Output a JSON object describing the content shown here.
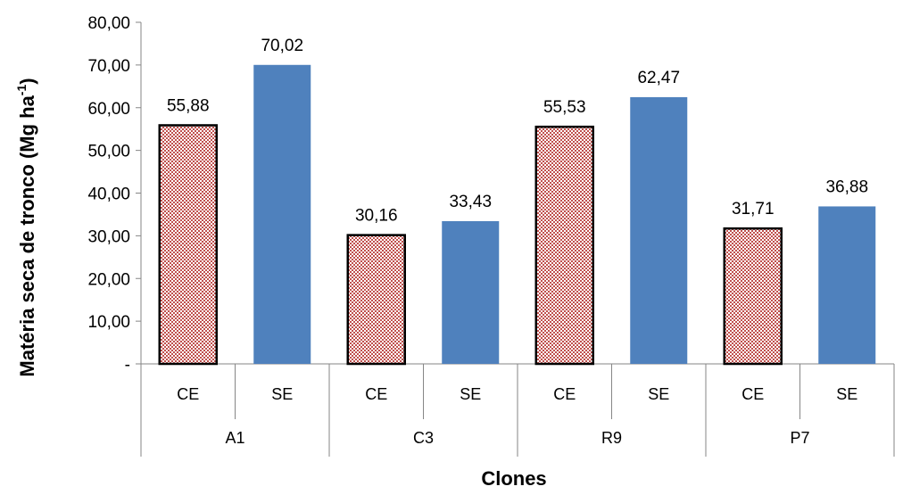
{
  "chart_data": {
    "type": "bar",
    "ylabel": "Matéria seca de tronco (Mg ha",
    "ylabel_superscript": "-1",
    "ylabel_close": ")",
    "xlabel": "Clones",
    "ylim": [
      0,
      80
    ],
    "yticks": [
      "-",
      "10,00",
      "20,00",
      "30,00",
      "40,00",
      "50,00",
      "60,00",
      "70,00",
      "80,00"
    ],
    "grid": false,
    "groups": [
      {
        "label": "A1",
        "bars": [
          {
            "label": "CE",
            "value": 55.88,
            "value_label": "55,88"
          },
          {
            "label": "SE",
            "value": 70.02,
            "value_label": "70,02"
          }
        ]
      },
      {
        "label": "C3",
        "bars": [
          {
            "label": "CE",
            "value": 30.16,
            "value_label": "30,16"
          },
          {
            "label": "SE",
            "value": 33.43,
            "value_label": "33,43"
          }
        ]
      },
      {
        "label": "R9",
        "bars": [
          {
            "label": "CE",
            "value": 55.53,
            "value_label": "55,53"
          },
          {
            "label": "SE",
            "value": 62.47,
            "value_label": "62,47"
          }
        ]
      },
      {
        "label": "P7",
        "bars": [
          {
            "label": "CE",
            "value": 31.71,
            "value_label": "31,71"
          },
          {
            "label": "SE",
            "value": 36.88,
            "value_label": "36,88"
          }
        ]
      }
    ],
    "colors": {
      "CE_fill": "#c0504d",
      "CE_border": "#000000",
      "SE_fill": "#4f81bd"
    }
  }
}
